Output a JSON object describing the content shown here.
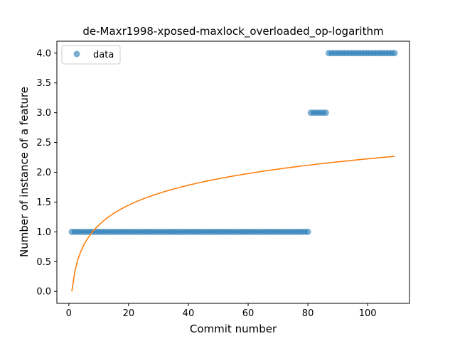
{
  "chart_data": {
    "type": "scatter",
    "title": "de-Maxr1998-xposed-maxlock_overloaded_op-logarithm",
    "xlabel": "Commit number",
    "ylabel": "Number of instance of a feature",
    "xlim": [
      -4,
      114
    ],
    "ylim": [
      -0.2,
      4.2
    ],
    "xticks": [
      0,
      20,
      40,
      60,
      80,
      100
    ],
    "yticks": [
      0.0,
      0.5,
      1.0,
      1.5,
      2.0,
      2.5,
      3.0,
      3.5,
      4.0
    ],
    "grid": false,
    "legend_position": "upper-left",
    "series": [
      {
        "name": "data",
        "kind": "scatter",
        "color": "#1f77b4",
        "segments": [
          {
            "x_start": 1,
            "x_end": 80,
            "y": 1
          },
          {
            "x_start": 81,
            "x_end": 86,
            "y": 3
          },
          {
            "x_start": 87,
            "x_end": 109,
            "y": 4
          }
        ]
      },
      {
        "kind": "line",
        "color": "#ff7f0e",
        "model": "a*ln(x)",
        "a": 0.4833,
        "x_start": 1,
        "x_end": 109
      }
    ]
  }
}
